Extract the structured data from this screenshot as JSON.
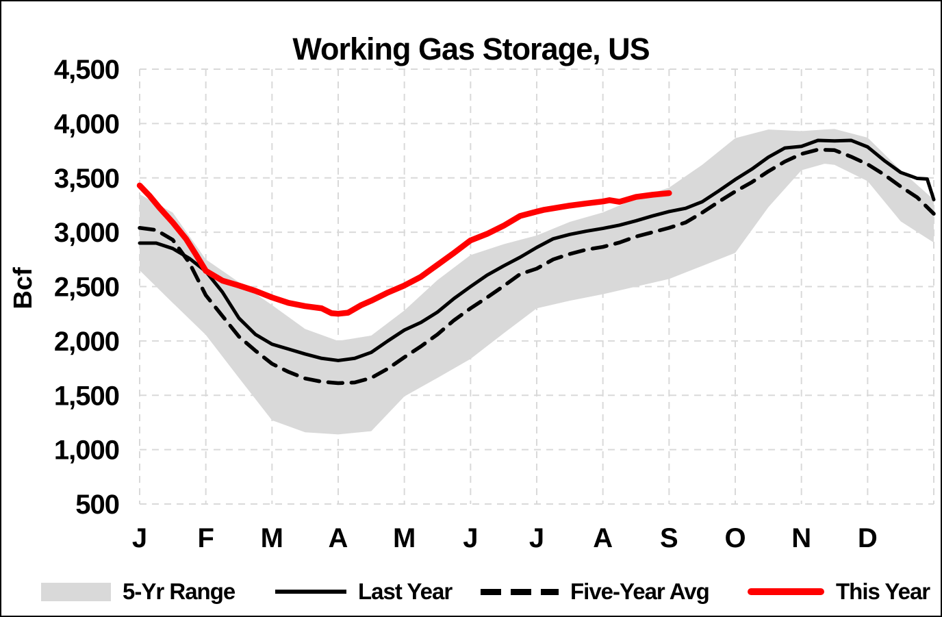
{
  "chart_data": {
    "type": "line",
    "title": "Working Gas Storage, US",
    "ylabel": "Bcf",
    "ylim": [
      500,
      4500
    ],
    "y_tick_values": [
      4500,
      4000,
      3500,
      3000,
      2500,
      2000,
      1500,
      1000,
      500
    ],
    "y_tick_labels": [
      "4,500",
      "4,000",
      "3,500",
      "3,000",
      "2,500",
      "2,000",
      "1,500",
      "1,000",
      "500"
    ],
    "x_unit": "month",
    "xlim_months": [
      0,
      12
    ],
    "month_labels": [
      "J",
      "F",
      "M",
      "A",
      "M",
      "J",
      "J",
      "A",
      "S",
      "O",
      "N",
      "D"
    ],
    "grid": "dashed-lightgray",
    "legend_position": "bottom",
    "colors": {
      "band": "#d9d9d9",
      "last_year": "#000000",
      "five_year_avg": "#000000",
      "this_year": "#ff0000",
      "gridline": "#d9d9d9",
      "background": "#ffffff"
    },
    "legend": [
      {
        "label": "5-Yr Range",
        "type": "band",
        "color": "#d9d9d9"
      },
      {
        "label": "Last Year",
        "type": "solid-line",
        "color": "#000000"
      },
      {
        "label": "Five-Year Avg",
        "type": "dashed-line",
        "color": "#000000"
      },
      {
        "label": "This Year",
        "type": "thick-line",
        "color": "#ff0000"
      }
    ],
    "band": {
      "name": "5-Yr Range",
      "x": [
        0,
        0.5,
        1,
        1.5,
        2,
        2.5,
        3,
        3.5,
        4,
        4.5,
        5,
        5.5,
        6,
        6.5,
        7,
        7.5,
        8,
        8.5,
        9,
        9.5,
        10,
        10.35,
        10.5,
        11,
        11.5,
        12
      ],
      "upper": [
        3350,
        3180,
        2750,
        2540,
        2330,
        2110,
        2000,
        2050,
        2280,
        2560,
        2790,
        2890,
        2970,
        3095,
        3182,
        3310,
        3410,
        3620,
        3865,
        3945,
        3930,
        3945,
        3950,
        3870,
        3570,
        3300
      ],
      "lower": [
        2650,
        2350,
        2055,
        1660,
        1270,
        1160,
        1140,
        1170,
        1490,
        1660,
        1835,
        2070,
        2300,
        2370,
        2430,
        2500,
        2570,
        2690,
        2810,
        3230,
        3570,
        3630,
        3620,
        3470,
        3100,
        2905
      ]
    },
    "series": [
      {
        "name": "Last Year",
        "style": "solid",
        "color": "#000000",
        "width": 5,
        "x": [
          0,
          0.25,
          0.5,
          0.75,
          1,
          1.25,
          1.5,
          1.75,
          2,
          2.25,
          2.5,
          2.75,
          3,
          3.25,
          3.5,
          3.75,
          4,
          4.25,
          4.5,
          4.75,
          5,
          5.25,
          5.5,
          5.75,
          6,
          6.25,
          6.5,
          6.75,
          7,
          7.25,
          7.5,
          7.75,
          8,
          8.25,
          8.5,
          8.75,
          9,
          9.25,
          9.5,
          9.75,
          10,
          10.25,
          10.5,
          10.75,
          11,
          11.25,
          11.5,
          11.75,
          11.9,
          12
        ],
        "values": [
          2900,
          2900,
          2850,
          2760,
          2640,
          2450,
          2210,
          2060,
          1970,
          1925,
          1880,
          1840,
          1820,
          1840,
          1895,
          2000,
          2100,
          2170,
          2265,
          2390,
          2500,
          2605,
          2690,
          2770,
          2860,
          2940,
          2980,
          3010,
          3035,
          3065,
          3105,
          3150,
          3190,
          3220,
          3280,
          3380,
          3485,
          3580,
          3690,
          3775,
          3790,
          3845,
          3840,
          3845,
          3785,
          3660,
          3550,
          3495,
          3490,
          3300
        ]
      },
      {
        "name": "Five-Year Avg",
        "style": "dashed",
        "color": "#000000",
        "width": 5.5,
        "x": [
          0,
          0.25,
          0.5,
          0.75,
          1,
          1.25,
          1.5,
          1.75,
          2,
          2.25,
          2.5,
          2.75,
          3,
          3.25,
          3.5,
          3.75,
          4,
          4.25,
          4.5,
          4.75,
          5,
          5.25,
          5.5,
          5.75,
          6,
          6.25,
          6.5,
          6.75,
          7,
          7.25,
          7.5,
          7.75,
          8,
          8.25,
          8.5,
          8.75,
          9,
          9.25,
          9.5,
          9.75,
          10,
          10.25,
          10.5,
          10.75,
          11,
          11.25,
          11.5,
          11.75,
          12
        ],
        "values": [
          3040,
          3020,
          2930,
          2720,
          2420,
          2230,
          2040,
          1910,
          1790,
          1715,
          1655,
          1625,
          1612,
          1618,
          1660,
          1745,
          1850,
          1950,
          2060,
          2190,
          2300,
          2400,
          2505,
          2615,
          2665,
          2750,
          2800,
          2840,
          2865,
          2905,
          2960,
          3000,
          3040,
          3090,
          3180,
          3280,
          3375,
          3460,
          3560,
          3650,
          3720,
          3760,
          3755,
          3695,
          3625,
          3530,
          3420,
          3320,
          3170
        ]
      },
      {
        "name": "This Year",
        "style": "solid",
        "color": "#ff0000",
        "width": 8.5,
        "x": [
          0,
          0.15,
          0.3,
          0.5,
          0.7,
          0.85,
          1,
          1.25,
          1.5,
          1.75,
          2,
          2.25,
          2.5,
          2.75,
          2.9,
          3,
          3.15,
          3.35,
          3.5,
          3.75,
          4,
          4.25,
          4.5,
          4.75,
          5,
          5.25,
          5.5,
          5.75,
          6,
          6.1,
          6.25,
          6.5,
          6.75,
          7,
          7.1,
          7.25,
          7.5,
          7.75,
          8
        ],
        "values": [
          3430,
          3335,
          3225,
          3090,
          2940,
          2795,
          2645,
          2555,
          2510,
          2460,
          2400,
          2350,
          2320,
          2300,
          2255,
          2250,
          2260,
          2330,
          2370,
          2445,
          2510,
          2590,
          2700,
          2810,
          2925,
          2985,
          3060,
          3150,
          3190,
          3205,
          3220,
          3245,
          3265,
          3283,
          3295,
          3280,
          3325,
          3345,
          3360
        ]
      }
    ]
  }
}
